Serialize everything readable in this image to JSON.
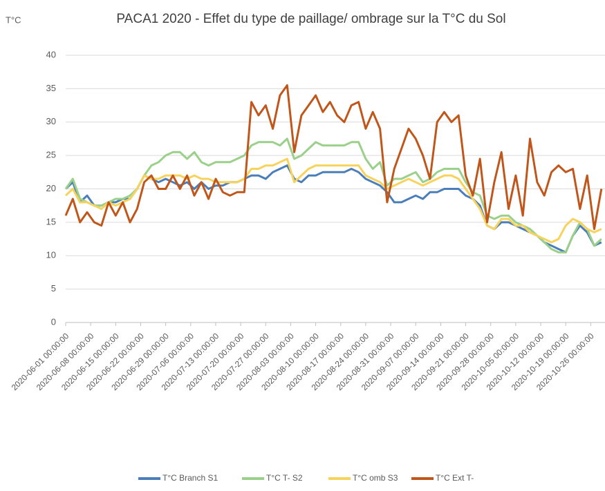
{
  "chart_data": {
    "type": "line",
    "title": "PACA1 2020 - Effet du type de paillage/ ombrage sur la T°C du Sol",
    "y_label": "T°C",
    "x": [
      "2020-06-01 00:00:00",
      "2020-06-03 00:00:00",
      "2020-06-05 00:00:00",
      "2020-06-07 00:00:00",
      "2020-06-09 00:00:00",
      "2020-06-11 00:00:00",
      "2020-06-13 00:00:00",
      "2020-06-15 00:00:00",
      "2020-06-17 00:00:00",
      "2020-06-19 00:00:00",
      "2020-06-21 00:00:00",
      "2020-06-23 00:00:00",
      "2020-06-25 00:00:00",
      "2020-06-27 00:00:00",
      "2020-06-29 00:00:00",
      "2020-07-01 00:00:00",
      "2020-07-03 00:00:00",
      "2020-07-05 00:00:00",
      "2020-07-07 00:00:00",
      "2020-07-09 00:00:00",
      "2020-07-11 00:00:00",
      "2020-07-13 00:00:00",
      "2020-07-15 00:00:00",
      "2020-07-17 00:00:00",
      "2020-07-19 00:00:00",
      "2020-07-21 00:00:00",
      "2020-07-23 00:00:00",
      "2020-07-25 00:00:00",
      "2020-07-27 00:00:00",
      "2020-07-29 00:00:00",
      "2020-07-31 00:00:00",
      "2020-08-02 00:00:00",
      "2020-08-04 00:00:00",
      "2020-08-06 00:00:00",
      "2020-08-08 00:00:00",
      "2020-08-10 00:00:00",
      "2020-08-12 00:00:00",
      "2020-08-14 00:00:00",
      "2020-08-16 00:00:00",
      "2020-08-18 00:00:00",
      "2020-08-20 00:00:00",
      "2020-08-22 00:00:00",
      "2020-08-24 00:00:00",
      "2020-08-26 00:00:00",
      "2020-08-28 00:00:00",
      "2020-08-30 00:00:00",
      "2020-09-01 00:00:00",
      "2020-09-03 00:00:00",
      "2020-09-05 00:00:00",
      "2020-09-07 00:00:00",
      "2020-09-09 00:00:00",
      "2020-09-11 00:00:00",
      "2020-09-13 00:00:00",
      "2020-09-15 00:00:00",
      "2020-09-17 00:00:00",
      "2020-09-19 00:00:00",
      "2020-09-21 00:00:00",
      "2020-09-23 00:00:00",
      "2020-09-25 00:00:00",
      "2020-09-27 00:00:00",
      "2020-09-29 00:00:00",
      "2020-10-01 00:00:00",
      "2020-10-03 00:00:00",
      "2020-10-05 00:00:00",
      "2020-10-07 00:00:00",
      "2020-10-09 00:00:00",
      "2020-10-11 00:00:00",
      "2020-10-13 00:00:00",
      "2020-10-15 00:00:00",
      "2020-10-17 00:00:00",
      "2020-10-19 00:00:00",
      "2020-10-21 00:00:00",
      "2020-10-23 00:00:00",
      "2020-10-25 00:00:00",
      "2020-10-27 00:00:00",
      "2020-10-29 00:00:00"
    ],
    "series": [
      {
        "name": "T°C Branch S1",
        "color": "#4a7ebb",
        "values": [
          20,
          21,
          18,
          19,
          17.5,
          17.5,
          18,
          18,
          18.5,
          18.5,
          20,
          22,
          21.5,
          21,
          21.5,
          21,
          20.5,
          21,
          20,
          21,
          20,
          20.5,
          20.5,
          21,
          21,
          21.5,
          22,
          22,
          21.5,
          22.5,
          23,
          23.5,
          21.5,
          21,
          22,
          22,
          22.5,
          22.5,
          22.5,
          22.5,
          23,
          22.5,
          21.5,
          21,
          20.5,
          19.5,
          18,
          18,
          18.5,
          19,
          18.5,
          19.5,
          19.5,
          20,
          20,
          20,
          19,
          18.5,
          17.5,
          14.5,
          14,
          15,
          15,
          14.5,
          14,
          13.5,
          13,
          12,
          11.5,
          11,
          10.5,
          13,
          14.5,
          13.5,
          11.5,
          12
        ]
      },
      {
        "name": "T°C T- S2",
        "color": "#9bd08b",
        "values": [
          20,
          21.5,
          18.5,
          18,
          17.5,
          17.5,
          18,
          18.5,
          18.5,
          19,
          20,
          22,
          23.5,
          24,
          25,
          25.5,
          25.5,
          24.5,
          25.5,
          24,
          23.5,
          24,
          24,
          24,
          24.5,
          25,
          26.5,
          27,
          27,
          27,
          26.5,
          27.5,
          24.5,
          25,
          26,
          27,
          26.5,
          26.5,
          26.5,
          26.5,
          27,
          27,
          24.5,
          23,
          24,
          20.5,
          21.5,
          21.5,
          22,
          22.5,
          21,
          21.5,
          22.5,
          23,
          23,
          23,
          21,
          19.5,
          19,
          16,
          15.5,
          16,
          16,
          15,
          14.5,
          14,
          13,
          12,
          11,
          10.5,
          10.5,
          13,
          15,
          14,
          11.5,
          12.5
        ]
      },
      {
        "name": "T°C omb S3",
        "color": "#f7d35c",
        "values": [
          19,
          20,
          18,
          18,
          17.5,
          17,
          18,
          17.5,
          18,
          18.5,
          20,
          22,
          21.5,
          21.5,
          22,
          22,
          22,
          21.5,
          22,
          21.5,
          21.5,
          21,
          21,
          21,
          21,
          21.5,
          23,
          23,
          23.5,
          23.5,
          24,
          24.5,
          21,
          22,
          23,
          23.5,
          23.5,
          23.5,
          23.5,
          23.5,
          23.5,
          23.5,
          22,
          21.5,
          21,
          20,
          20.5,
          21,
          21.5,
          21,
          20.5,
          21,
          21.5,
          22,
          22,
          21.5,
          20,
          18.5,
          17,
          14.5,
          14,
          15.5,
          15.5,
          14.5,
          14.5,
          13.5,
          13,
          12.5,
          12,
          12.5,
          14.5,
          15.5,
          15,
          14,
          13.5,
          14
        ]
      },
      {
        "name": "T°C Ext T-",
        "color": "#c0561a",
        "values": [
          16,
          18.5,
          15,
          16.5,
          15,
          14.5,
          18,
          16,
          18,
          15,
          17,
          21,
          22,
          20,
          20,
          22,
          20,
          22,
          19,
          21,
          18.5,
          21.5,
          19.5,
          19,
          19.5,
          19.5,
          33,
          31,
          32.5,
          29,
          34,
          35.5,
          25.5,
          31,
          32.5,
          34,
          31.5,
          33,
          31,
          30,
          32.5,
          33,
          29,
          31.5,
          29,
          18,
          23,
          26,
          29,
          27.5,
          25,
          21.5,
          30,
          31.5,
          30,
          31,
          22,
          19,
          24.5,
          15,
          21,
          25.5,
          17,
          22,
          16,
          27.5,
          21,
          19,
          22.5,
          23.5,
          22.5,
          23,
          17,
          22,
          14,
          20
        ]
      }
    ],
    "xlim": [
      "2020-06-01 00:00:00",
      "2020-10-30 00:00:00"
    ],
    "xticks": [
      "2020-06-01 00:00:00",
      "2020-06-08 00:00:00",
      "2020-06-15 00:00:00",
      "2020-06-22 00:00:00",
      "2020-06-29 00:00:00",
      "2020-07-06 00:00:00",
      "2020-07-13 00:00:00",
      "2020-07-20 00:00:00",
      "2020-07-27 00:00:00",
      "2020-08-03 00:00:00",
      "2020-08-10 00:00:00",
      "2020-08-17 00:00:00",
      "2020-08-24 00:00:00",
      "2020-08-31 00:00:00",
      "2020-09-07 00:00:00",
      "2020-09-14 00:00:00",
      "2020-09-21 00:00:00",
      "2020-09-28 00:00:00",
      "2020-10-05 00:00:00",
      "2020-10-12 00:00:00",
      "2020-10-19 00:00:00",
      "2020-10-26 00:00:00"
    ],
    "ylim": [
      0,
      40
    ],
    "yticks": [
      0,
      5,
      10,
      15,
      20,
      25,
      30,
      35,
      40
    ],
    "grid": true,
    "legend": "bottom"
  }
}
